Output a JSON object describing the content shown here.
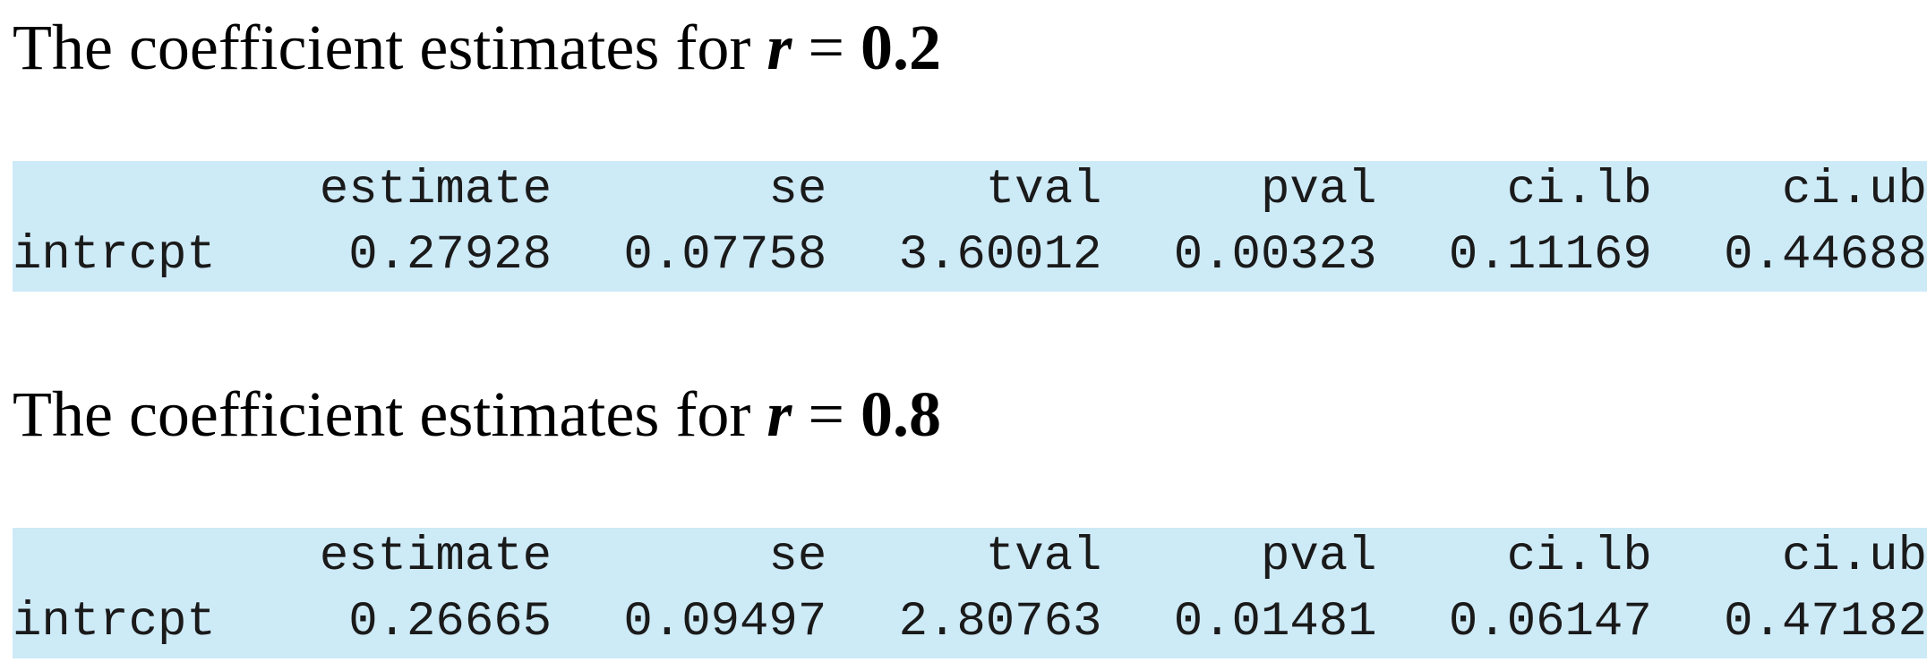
{
  "sections": [
    {
      "heading": {
        "prefix": "The coefficient estimates for ",
        "variable": "r",
        "equals": " = ",
        "value": "0.2"
      },
      "table": {
        "columns": [
          "",
          "estimate",
          "se",
          "tval",
          "pval",
          "ci.lb",
          "ci.ub"
        ],
        "rows": [
          {
            "label": "intrcpt",
            "values": [
              "0.27928",
              "0.07758",
              "3.60012",
              "0.00323",
              "0.11169",
              "0.44688"
            ]
          }
        ]
      }
    },
    {
      "heading": {
        "prefix": "The coefficient estimates for ",
        "variable": "r",
        "equals": " = ",
        "value": "0.8"
      },
      "table": {
        "columns": [
          "",
          "estimate",
          "se",
          "tval",
          "pval",
          "ci.lb",
          "ci.ub"
        ],
        "rows": [
          {
            "label": "intrcpt",
            "values": [
              "0.26665",
              "0.09497",
              "2.80763",
              "0.01481",
              "0.06147",
              "0.47182"
            ]
          }
        ]
      }
    }
  ],
  "colors": {
    "table_background": "#cdeaf7",
    "text": "#000000"
  }
}
